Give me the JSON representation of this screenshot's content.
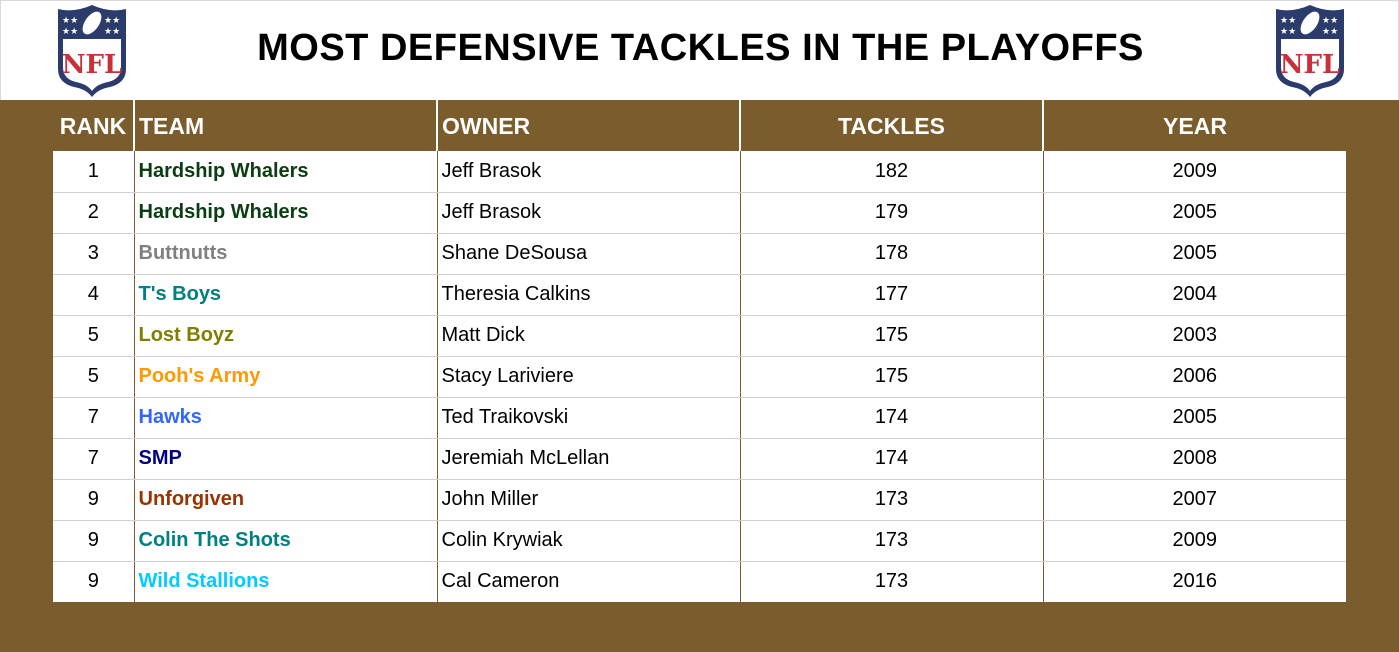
{
  "header": {
    "title": "MOST DEFENSIVE TACKLES IN THE PLAYOFFS",
    "logo_left": "nfl-logo-icon",
    "logo_right": "nfl-logo-icon"
  },
  "colors": {
    "background_brown": "#7b5c2d",
    "logo_blue": "#2b3b6b",
    "logo_red": "#c8303a"
  },
  "table": {
    "columns": [
      "RANK",
      "TEAM",
      "OWNER",
      "TACKLES",
      "YEAR"
    ],
    "rows": [
      {
        "rank": "1",
        "team": "Hardship Whalers",
        "team_color": "#0b3d12",
        "owner": "Jeff Brasok",
        "tackles": "182",
        "year": "2009"
      },
      {
        "rank": "2",
        "team": "Hardship Whalers",
        "team_color": "#0b3d12",
        "owner": "Jeff Brasok",
        "tackles": "179",
        "year": "2005"
      },
      {
        "rank": "3",
        "team": "Buttnutts",
        "team_color": "#808080",
        "owner": "Shane DeSousa",
        "tackles": "178",
        "year": "2005"
      },
      {
        "rank": "4",
        "team": "T's Boys",
        "team_color": "#008080",
        "owner": "Theresia Calkins",
        "tackles": "177",
        "year": "2004"
      },
      {
        "rank": "5",
        "team": "Lost Boyz",
        "team_color": "#808000",
        "owner": "Matt Dick",
        "tackles": "175",
        "year": "2003"
      },
      {
        "rank": "5",
        "team": "Pooh's Army",
        "team_color": "#ff9900",
        "owner": "Stacy Lariviere",
        "tackles": "175",
        "year": "2006"
      },
      {
        "rank": "7",
        "team": "Hawks",
        "team_color": "#3366ff",
        "owner": "Ted Traikovski",
        "tackles": "174",
        "year": "2005"
      },
      {
        "rank": "7",
        "team": "SMP",
        "team_color": "#000080",
        "owner": "Jeremiah McLellan",
        "tackles": "174",
        "year": "2008"
      },
      {
        "rank": "9",
        "team": "Unforgiven",
        "team_color": "#993300",
        "owner": "John Miller",
        "tackles": "173",
        "year": "2007"
      },
      {
        "rank": "9",
        "team": "Colin The Shots",
        "team_color": "#008080",
        "owner": "Colin Krywiak",
        "tackles": "173",
        "year": "2009"
      },
      {
        "rank": "9",
        "team": "Wild Stallions",
        "team_color": "#00ccff",
        "owner": "Cal Cameron",
        "tackles": "173",
        "year": "2016"
      }
    ]
  }
}
